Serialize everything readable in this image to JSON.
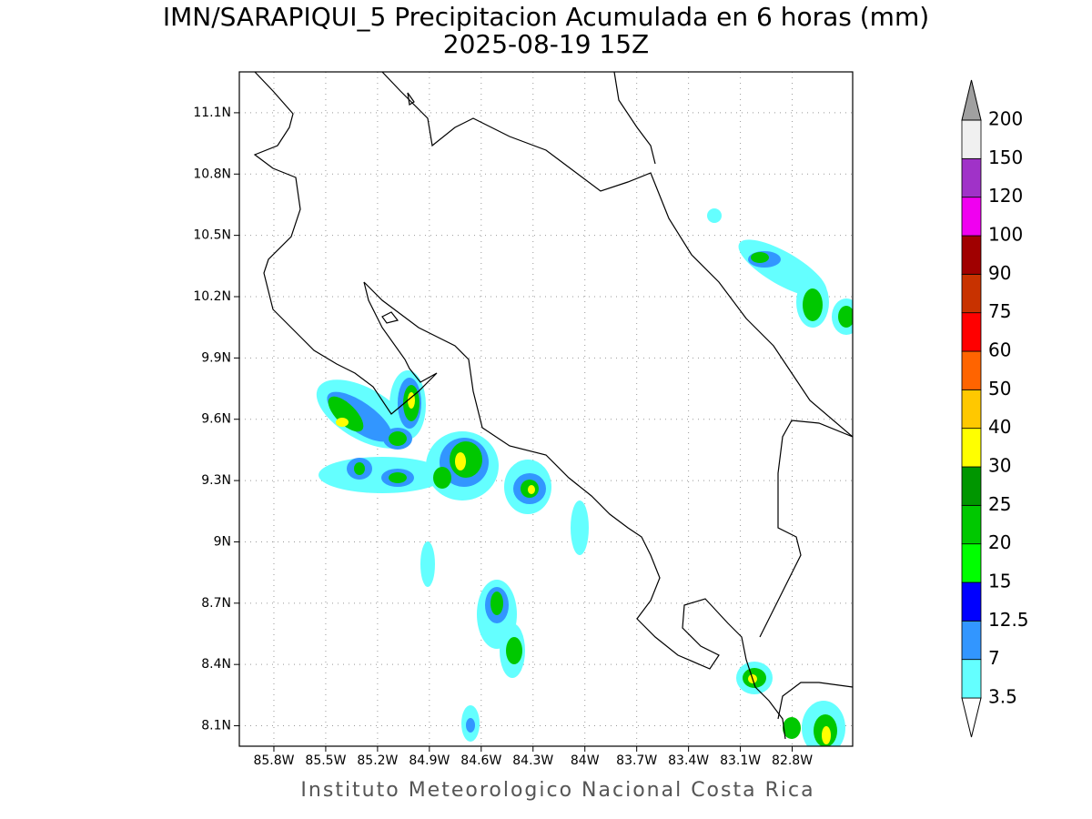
{
  "chart_data": {
    "type": "map",
    "title": "IMN/SARAPIQUI_5 Precipitacion Acumulada en 6 horas (mm)",
    "subtitle": "2025-08-19 15Z",
    "footer": "Instituto Meteorologico Nacional Costa Rica",
    "xlim": [
      -86.0,
      -82.45
    ],
    "ylim": [
      8.0,
      11.3
    ],
    "xticks": [
      {
        "value": -85.8,
        "label": "85.8W"
      },
      {
        "value": -85.5,
        "label": "85.5W"
      },
      {
        "value": -85.2,
        "label": "85.2W"
      },
      {
        "value": -84.9,
        "label": "84.9W"
      },
      {
        "value": -84.6,
        "label": "84.6W"
      },
      {
        "value": -84.3,
        "label": "84.3W"
      },
      {
        "value": -84.0,
        "label": "84W"
      },
      {
        "value": -83.7,
        "label": "83.7W"
      },
      {
        "value": -83.4,
        "label": "83.4W"
      },
      {
        "value": -83.1,
        "label": "83.1W"
      },
      {
        "value": -82.8,
        "label": "82.8W"
      }
    ],
    "yticks": [
      {
        "value": 8.1,
        "label": "8.1N"
      },
      {
        "value": 8.4,
        "label": "8.4N"
      },
      {
        "value": 8.7,
        "label": "8.7N"
      },
      {
        "value": 9.0,
        "label": "9N"
      },
      {
        "value": 9.3,
        "label": "9.3N"
      },
      {
        "value": 9.6,
        "label": "9.6N"
      },
      {
        "value": 9.9,
        "label": "9.9N"
      },
      {
        "value": 10.2,
        "label": "10.2N"
      },
      {
        "value": 10.5,
        "label": "10.5N"
      },
      {
        "value": 10.8,
        "label": "10.8N"
      },
      {
        "value": 11.1,
        "label": "11.1N"
      }
    ],
    "grid": true,
    "legend": {
      "levels": [
        3.5,
        7,
        12.5,
        15,
        20,
        25,
        30,
        40,
        50,
        60,
        75,
        90,
        100,
        120,
        150,
        200
      ],
      "colors": [
        "#ffffff",
        "#64ffff",
        "#3296ff",
        "#0000ff",
        "#00ff00",
        "#00c800",
        "#009600",
        "#ffff00",
        "#ffc800",
        "#ff6400",
        "#ff0000",
        "#c83200",
        "#a00000",
        "#f000f0",
        "#a032c8",
        "#f0f0f0",
        "#a0a0a0"
      ]
    }
  }
}
